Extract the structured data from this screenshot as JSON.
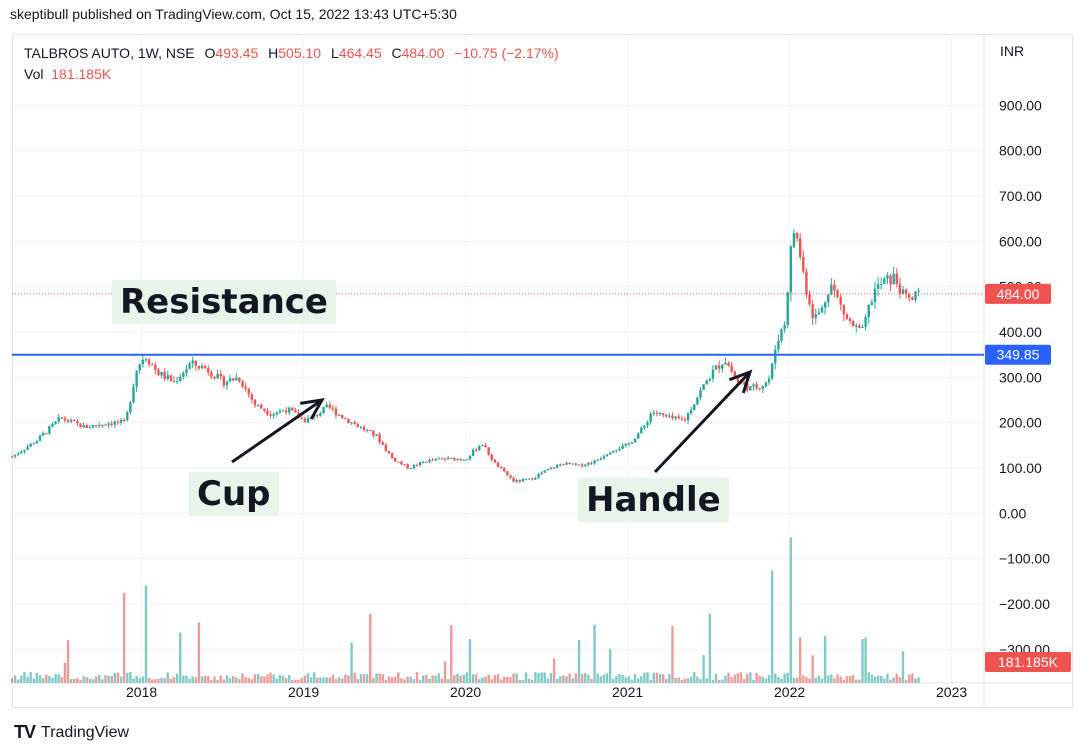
{
  "header": {
    "published": "skeptibull published on TradingView.com, Oct 15, 2022 13:43 UTC+5:30"
  },
  "legend": {
    "symbol": "TALBROS AUTO, 1W, NSE",
    "open_label": "O",
    "open": "493.45",
    "high_label": "H",
    "high": "505.10",
    "low_label": "L",
    "low": "464.45",
    "close_label": "C",
    "close": "484.00",
    "change": "−10.75 (−2.17%)",
    "vol_label": "Vol",
    "vol": "181.185K"
  },
  "currency": "INR",
  "annotations": {
    "resistance": "Resistance",
    "cup": "Cup",
    "handle": "Handle"
  },
  "footer": {
    "logo": "TV",
    "brand": "TradingView"
  },
  "colors": {
    "up": "#26a69a",
    "down": "#ef5350",
    "resistance_line": "#2962ff",
    "up_volume": "#80cbc4",
    "down_volume": "#ef9a9a"
  },
  "chart_data": {
    "type": "candlestick",
    "symbol": "TALBROS AUTO, 1W, NSE",
    "y_axis": {
      "min": -350,
      "max": 1000,
      "ticks": [
        900,
        800,
        700,
        600,
        500,
        400,
        300,
        200,
        100,
        0,
        -100,
        -200,
        -300
      ],
      "tick_labels": [
        "900.00",
        "800.00",
        "700.00",
        "600.00",
        "500.00",
        "400.00",
        "300.00",
        "200.00",
        "100.00",
        "0.00",
        "−100.00",
        "−200.00",
        "−300.00"
      ]
    },
    "x_axis": {
      "min": 2017.2,
      "max": 2023.2,
      "ticks": [
        2018,
        2019,
        2020,
        2021,
        2022,
        2023
      ],
      "tick_labels": [
        "2018",
        "2019",
        "2020",
        "2021",
        "2022",
        "2023"
      ]
    },
    "last_price": {
      "value": 484.0,
      "label": "484.00"
    },
    "resistance": {
      "value": 349.85,
      "label": "349.85"
    },
    "volume_label": "181.185K",
    "price_path": [
      [
        2017.2,
        125
      ],
      [
        2017.35,
        160
      ],
      [
        2017.5,
        210
      ],
      [
        2017.65,
        190
      ],
      [
        2017.8,
        200
      ],
      [
        2017.9,
        200
      ],
      [
        2017.93,
        250
      ],
      [
        2017.97,
        320
      ],
      [
        2018.02,
        350
      ],
      [
        2018.1,
        310
      ],
      [
        2018.2,
        290
      ],
      [
        2018.3,
        330
      ],
      [
        2018.4,
        320
      ],
      [
        2018.5,
        290
      ],
      [
        2018.6,
        300
      ],
      [
        2018.7,
        240
      ],
      [
        2018.8,
        220
      ],
      [
        2018.9,
        230
      ],
      [
        2019.0,
        205
      ],
      [
        2019.05,
        210
      ],
      [
        2019.15,
        235
      ],
      [
        2019.25,
        210
      ],
      [
        2019.35,
        190
      ],
      [
        2019.45,
        170
      ],
      [
        2019.55,
        120
      ],
      [
        2019.65,
        100
      ],
      [
        2019.75,
        115
      ],
      [
        2019.85,
        120
      ],
      [
        2020.0,
        120
      ],
      [
        2020.1,
        155
      ],
      [
        2020.18,
        110
      ],
      [
        2020.3,
        70
      ],
      [
        2020.4,
        75
      ],
      [
        2020.5,
        95
      ],
      [
        2020.6,
        110
      ],
      [
        2020.7,
        105
      ],
      [
        2020.8,
        115
      ],
      [
        2020.9,
        140
      ],
      [
        2021.0,
        150
      ],
      [
        2021.1,
        190
      ],
      [
        2021.15,
        225
      ],
      [
        2021.25,
        210
      ],
      [
        2021.35,
        205
      ],
      [
        2021.45,
        270
      ],
      [
        2021.52,
        310
      ],
      [
        2021.6,
        340
      ],
      [
        2021.68,
        290
      ],
      [
        2021.76,
        275
      ],
      [
        2021.84,
        285
      ],
      [
        2021.88,
        300
      ],
      [
        2021.92,
        380
      ],
      [
        2021.97,
        420
      ],
      [
        2022.02,
        630
      ],
      [
        2022.05,
        600
      ],
      [
        2022.1,
        500
      ],
      [
        2022.15,
        430
      ],
      [
        2022.2,
        450
      ],
      [
        2022.25,
        510
      ],
      [
        2022.3,
        470
      ],
      [
        2022.35,
        430
      ],
      [
        2022.4,
        410
      ],
      [
        2022.45,
        400
      ],
      [
        2022.48,
        440
      ],
      [
        2022.52,
        490
      ],
      [
        2022.58,
        510
      ],
      [
        2022.65,
        520
      ],
      [
        2022.7,
        480
      ],
      [
        2022.75,
        470
      ],
      [
        2022.8,
        484
      ]
    ],
    "volume_spikes": [
      {
        "x": 2017.9,
        "level": 0.6
      },
      {
        "x": 2018.02,
        "level": 0.65
      },
      {
        "x": 2021.47,
        "level": 0.4
      },
      {
        "x": 2021.9,
        "level": 0.75
      },
      {
        "x": 2022.0,
        "level": 0.97
      },
      {
        "x": 2022.47,
        "level": 0.45
      }
    ]
  }
}
